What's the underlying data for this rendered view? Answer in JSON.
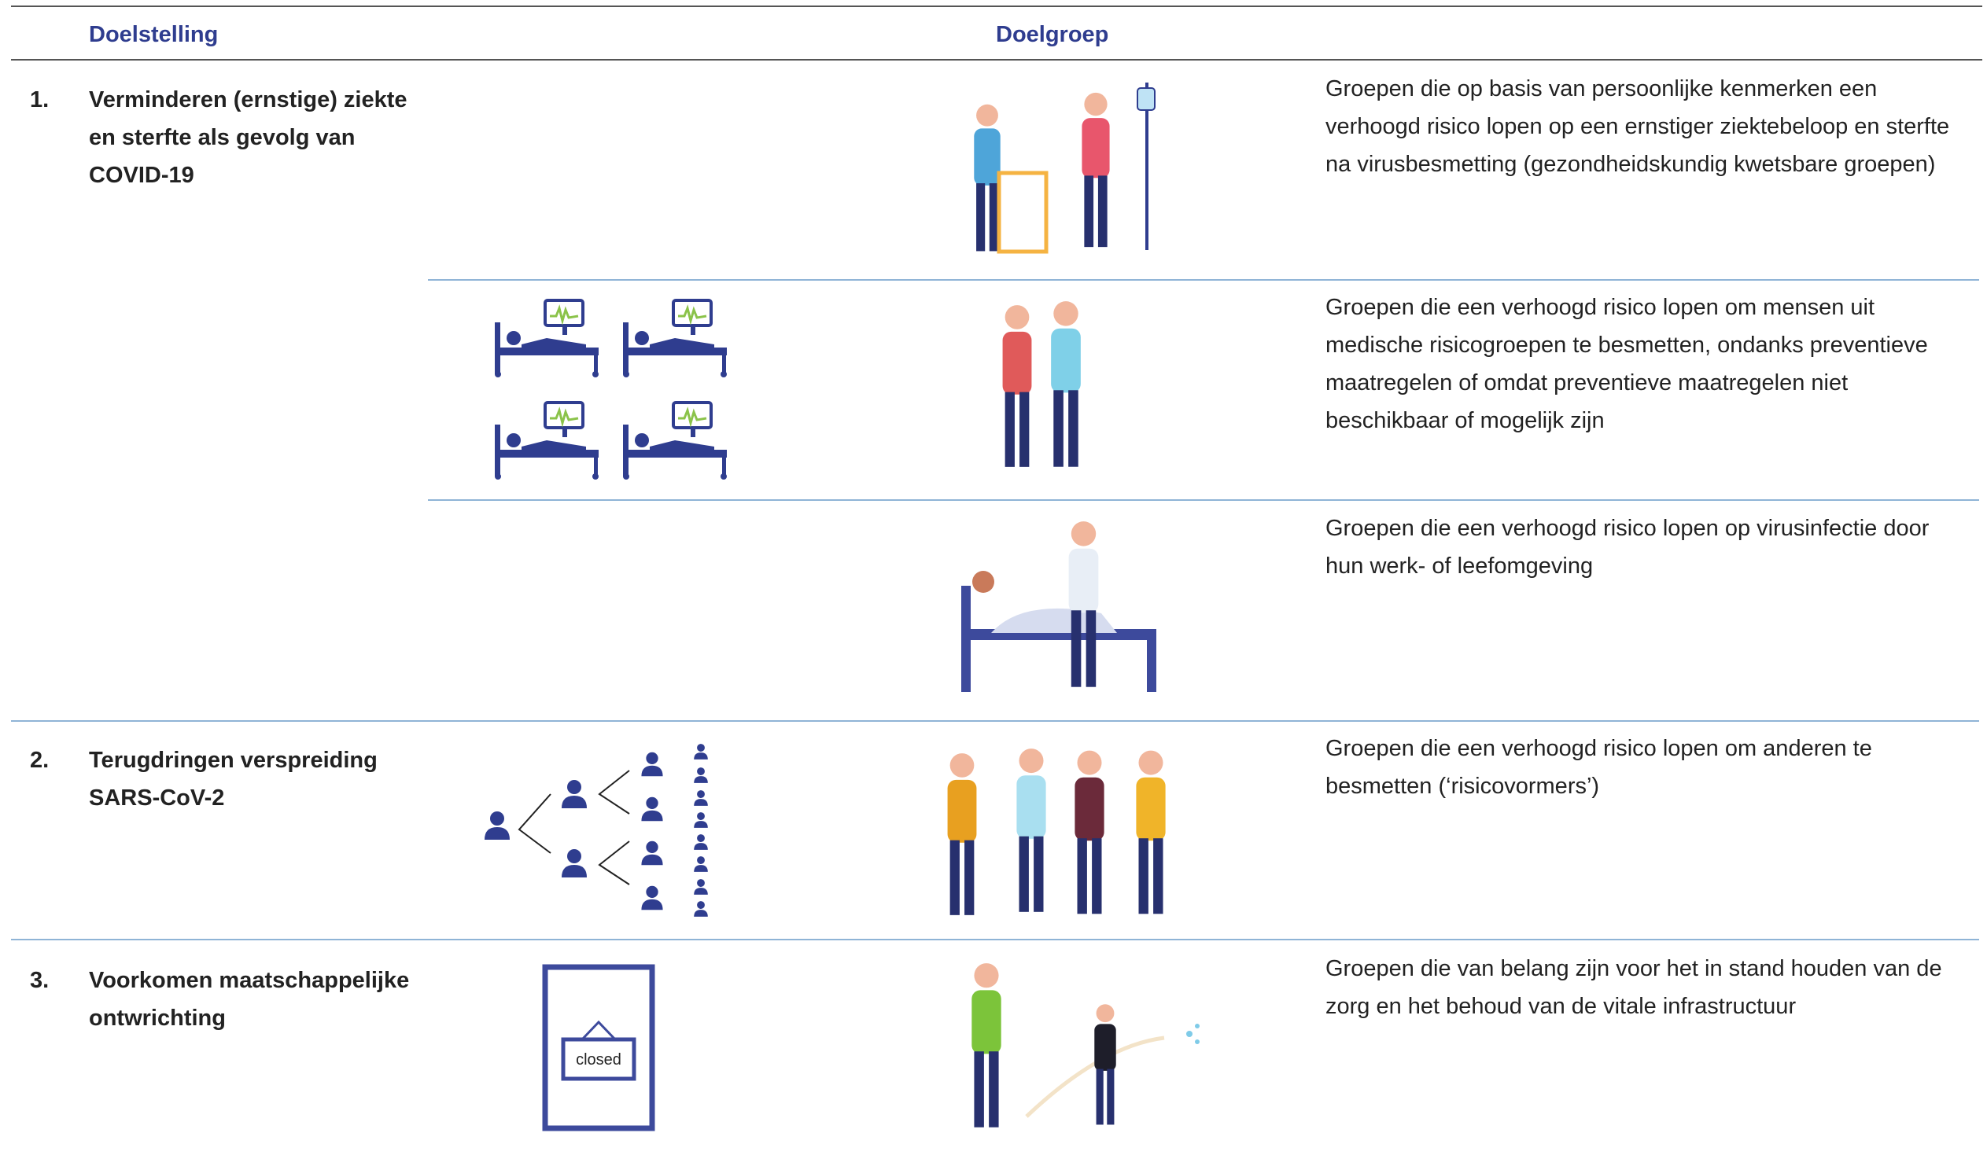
{
  "header": {
    "goal": "Doelstelling",
    "target_group": "Doelgroep"
  },
  "rows": [
    {
      "number": "1.",
      "goal": "Verminderen (ernstige) ziekte en sterfte als gevolg van COVID-19",
      "target_groups": [
        "Groepen die op basis van persoonlijke kenmerken een verhoogd risico lopen op een ernstiger ziektebeloop en sterfte na virusbesmetting (gezondheidskundig kwetsbare groepen)",
        "Groepen die een verhoogd risico lopen om mensen uit medische risicogroepen te besmetten, ondanks preventieve maatregelen of omdat preventieve maatregelen niet beschikbaar of mogelijk zijn",
        "Groepen die een verhoogd risico lopen op virusinfectie door hun werk- of leefomgeving"
      ]
    },
    {
      "number": "2.",
      "goal": "Terugdringen verspreiding SARS-CoV-2",
      "target_groups": [
        "Groepen die een verhoogd risico lopen om anderen te besmetten (‘risicovormers’)"
      ]
    },
    {
      "number": "3.",
      "goal": "Voorkomen maatschappelijke ontwrichting",
      "target_groups": [
        "Groepen die van belang zijn voor het in stand houden van de zorg en het behoud van de vitale infrastructuur"
      ],
      "sign": "closed"
    }
  ]
}
